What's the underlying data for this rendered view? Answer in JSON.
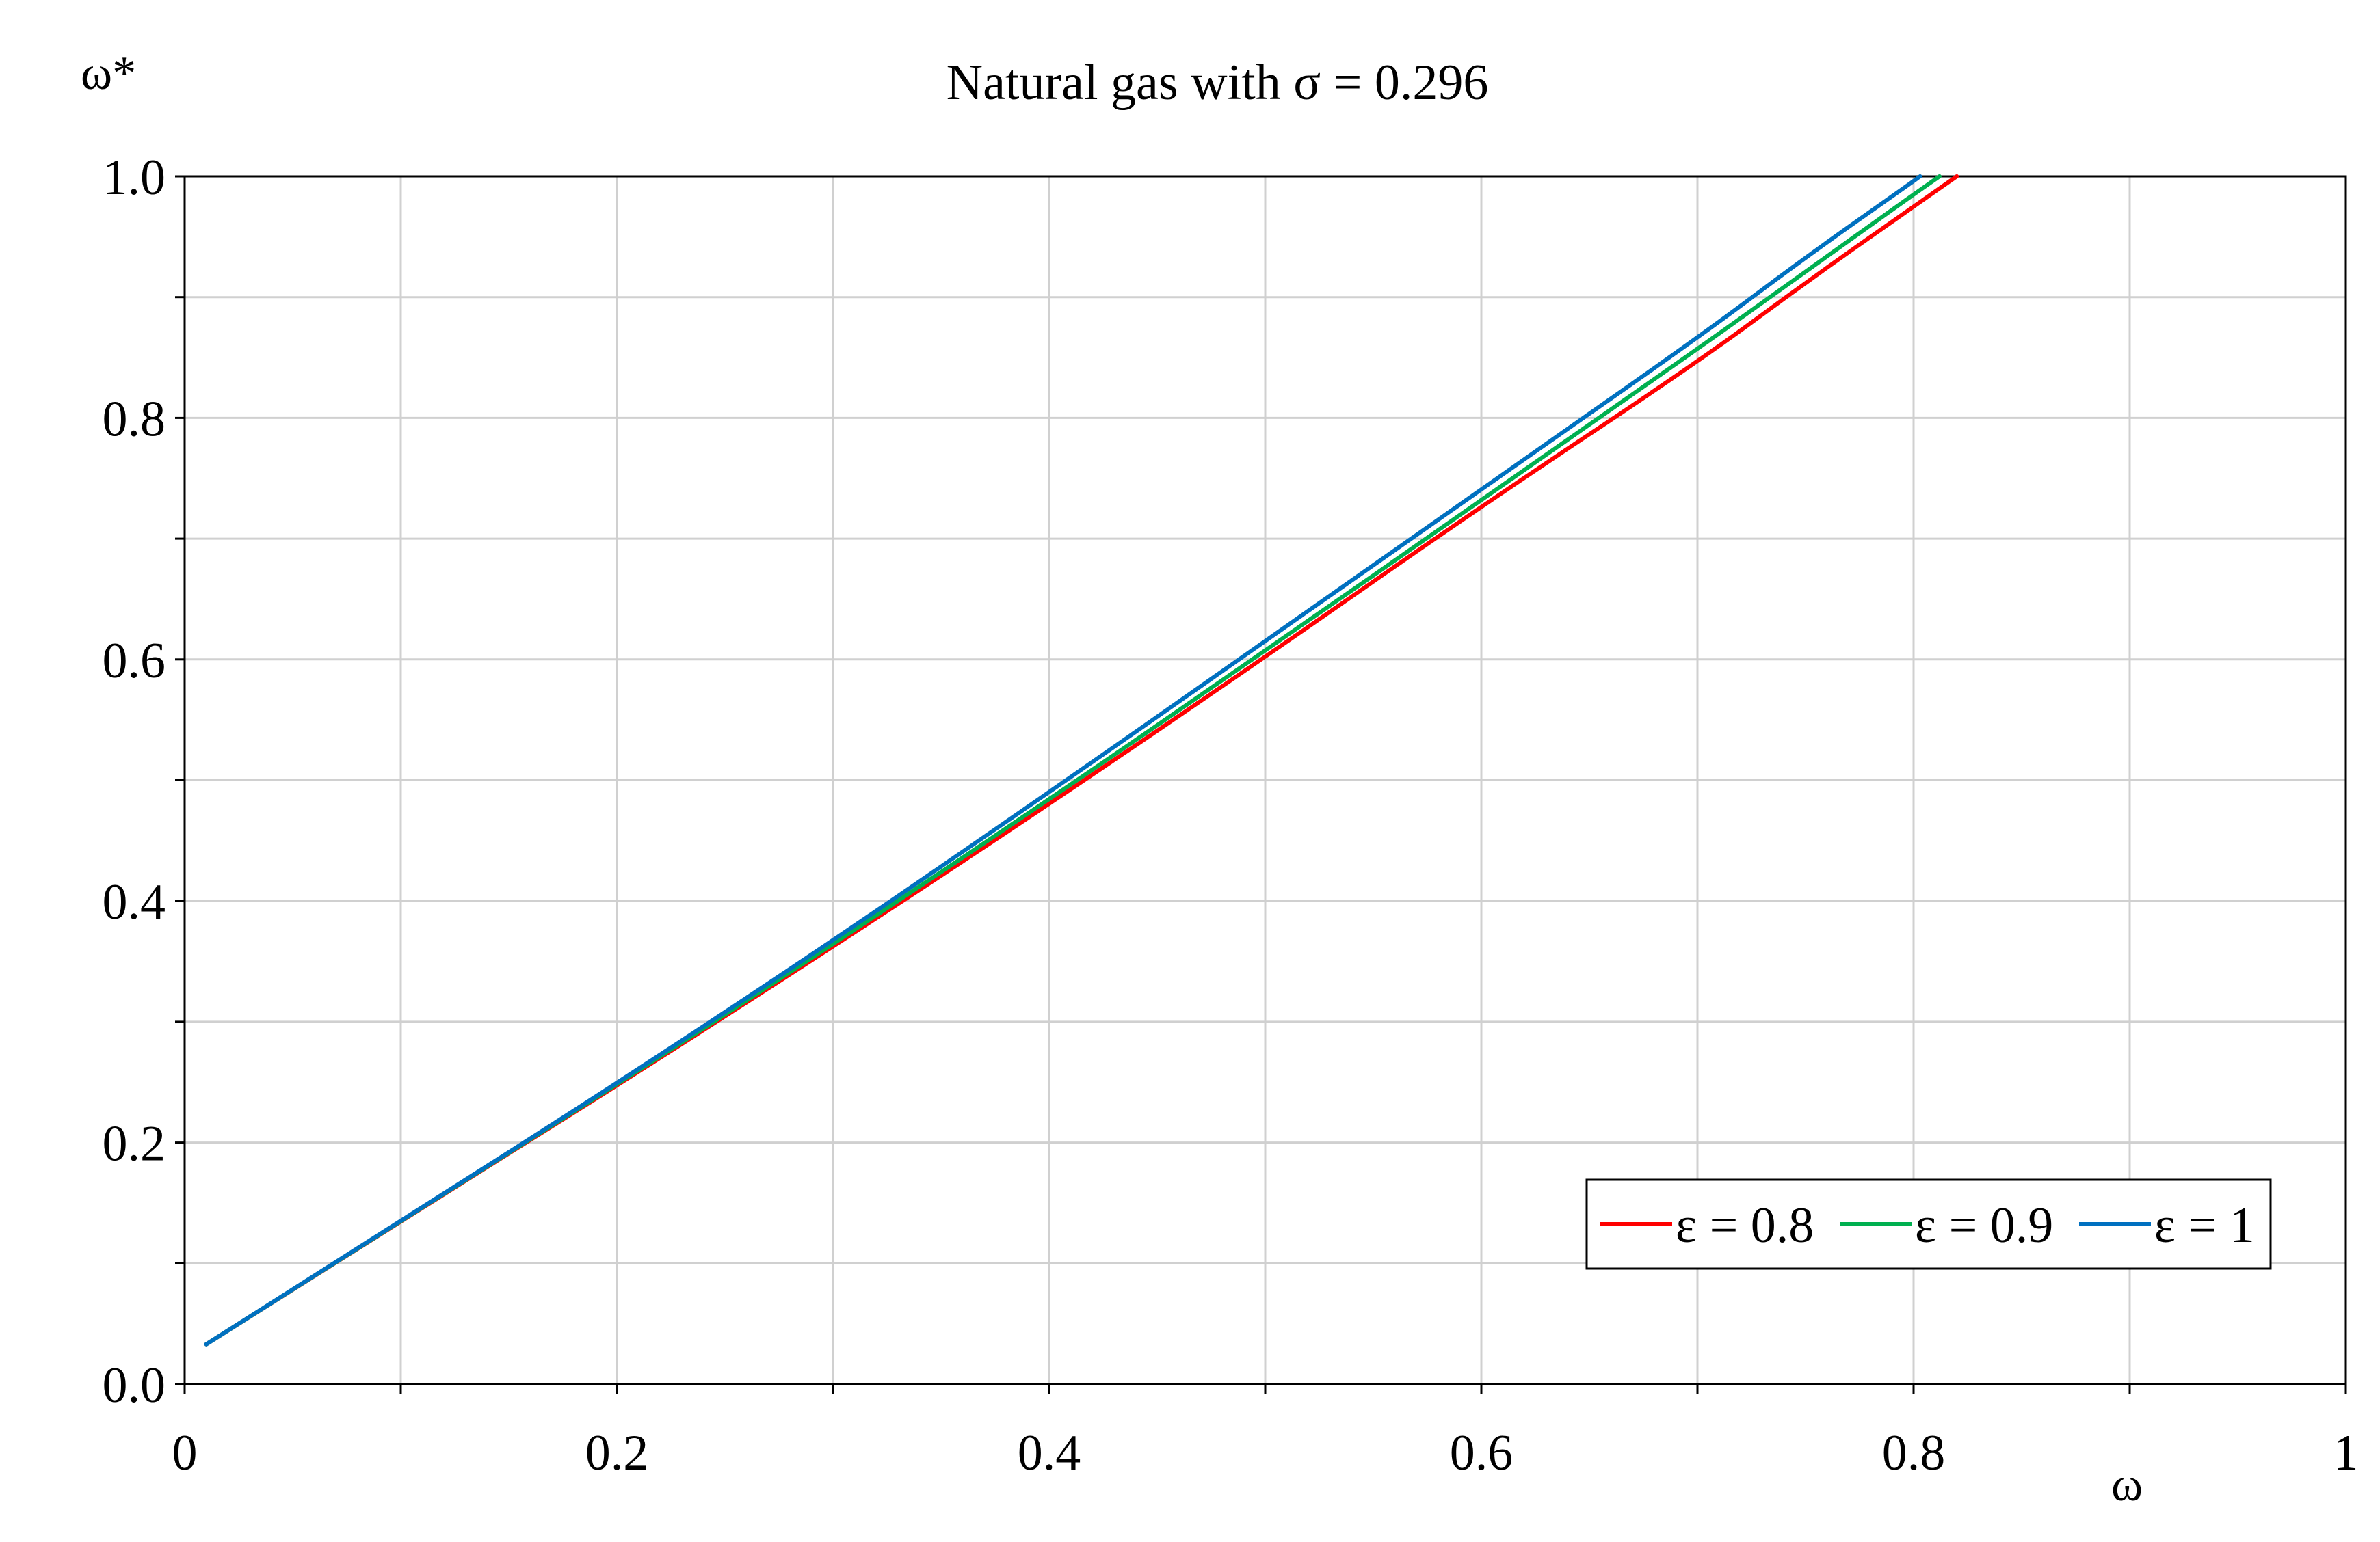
{
  "chart_data": {
    "type": "line",
    "title": "Natural gas with σ = 0.296",
    "xlabel": "ω",
    "ylabel": "ω*",
    "xlim": [
      0,
      1
    ],
    "ylim": [
      0,
      1
    ],
    "x_ticks": [
      "0",
      "0.2",
      "0.4",
      "0.6",
      "0.8",
      "1"
    ],
    "x_tick_values": [
      0,
      0.2,
      0.4,
      0.6,
      0.8,
      1
    ],
    "y_ticks": [
      "0.0",
      "0.2",
      "0.4",
      "0.6",
      "0.8",
      "1.0"
    ],
    "y_tick_values": [
      0,
      0.2,
      0.4,
      0.6,
      0.8,
      1.0
    ],
    "grid": true,
    "legend_position": "bottom-right",
    "series": [
      {
        "name": "ε = 0.8",
        "color": "#ff0000",
        "x": [
          0.01,
          0.1,
          0.2,
          0.3,
          0.4,
          0.5,
          0.6,
          0.7,
          0.75,
          0.8,
          0.82
        ],
        "y": [
          0.033,
          0.135,
          0.247,
          0.362,
          0.48,
          0.602,
          0.727,
          0.846,
          0.912,
          0.975,
          1.0
        ]
      },
      {
        "name": "ε = 0.9",
        "color": "#00b050",
        "x": [
          0.01,
          0.1,
          0.2,
          0.3,
          0.4,
          0.5,
          0.6,
          0.7,
          0.75,
          0.8,
          0.812
        ],
        "y": [
          0.033,
          0.135,
          0.248,
          0.364,
          0.484,
          0.607,
          0.732,
          0.857,
          0.921,
          0.985,
          1.0
        ]
      },
      {
        "name": "ε = 1",
        "color": "#0070c0",
        "x": [
          0.01,
          0.1,
          0.2,
          0.3,
          0.4,
          0.5,
          0.6,
          0.7,
          0.75,
          0.8,
          0.803
        ],
        "y": [
          0.033,
          0.135,
          0.249,
          0.367,
          0.49,
          0.615,
          0.741,
          0.866,
          0.933,
          0.996,
          1.0
        ]
      }
    ]
  }
}
